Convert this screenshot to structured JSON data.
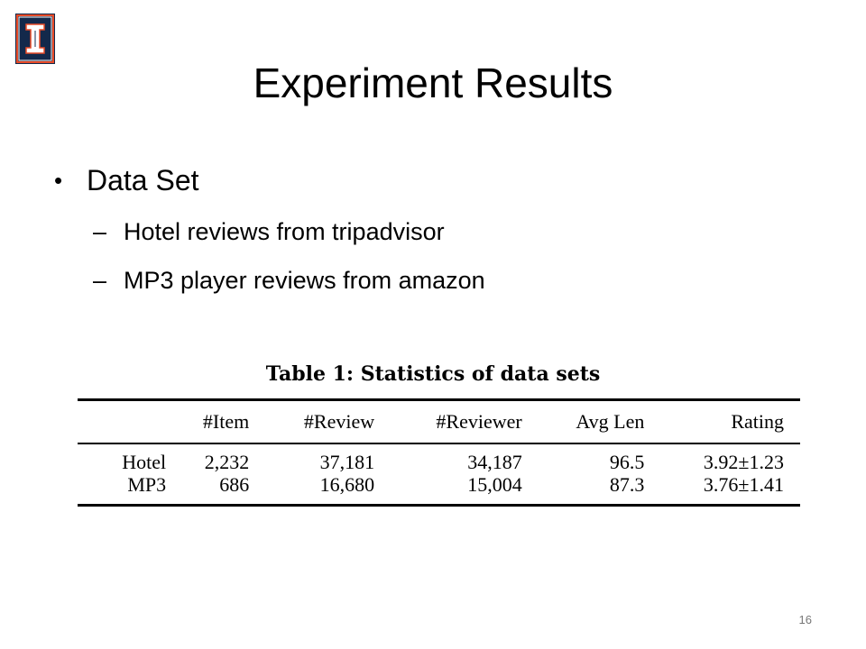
{
  "slide": {
    "title": "Experiment Results",
    "bullet": "Data Set",
    "sub_bullets": [
      "Hotel reviews from tripadvisor",
      "MP3 player reviews from amazon"
    ],
    "bullet_symbol": "•",
    "dash_symbol": "–",
    "page_number": "16"
  },
  "logo": {
    "icon": "university-i-logo",
    "colors": {
      "navy": "#13294b",
      "orange": "#e84a27"
    }
  },
  "table": {
    "caption": "Table 1:  Statistics of data sets",
    "headers": [
      "",
      "#Item",
      "#Review",
      "#Reviewer",
      "Avg Len",
      "Rating"
    ],
    "rows": [
      [
        "Hotel",
        "2,232",
        "37,181",
        "34,187",
        "96.5",
        "3.92±1.23"
      ],
      [
        "MP3",
        "686",
        "16,680",
        "15,004",
        "87.3",
        "3.76±1.41"
      ]
    ]
  }
}
